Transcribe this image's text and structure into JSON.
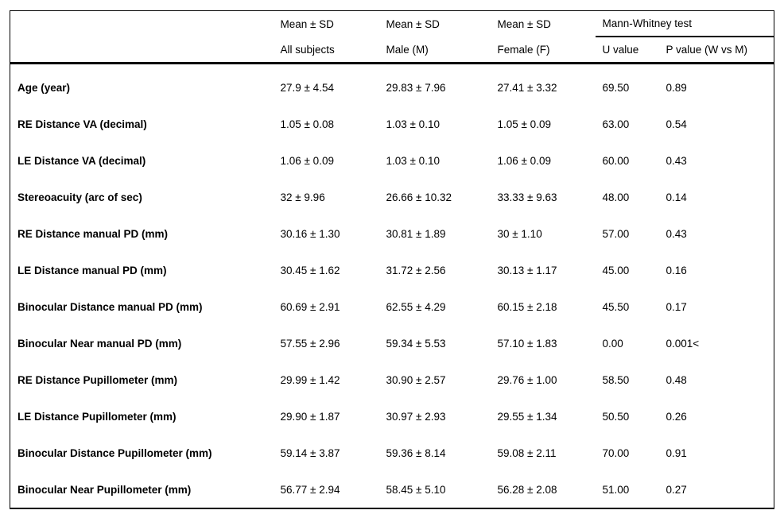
{
  "table": {
    "header": {
      "mean_sd": "Mean ± SD",
      "mann_whitney": "Mann-Whitney test",
      "sub": {
        "all": "All subjects",
        "male": "Male (M)",
        "female": "Female (F)",
        "u": "U value",
        "p": "P value (W vs M)"
      }
    },
    "rows": [
      {
        "label": "Age (year)",
        "all": "27.9 ± 4.54",
        "male": "29.83 ± 7.96",
        "female": "27.41 ± 3.32",
        "u": "69.50",
        "p": "0.89"
      },
      {
        "label": "RE Distance VA (decimal)",
        "all": "1.05 ± 0.08",
        "male": "1.03 ± 0.10",
        "female": "1.05 ± 0.09",
        "u": "63.00",
        "p": "0.54"
      },
      {
        "label": "LE Distance VA (decimal)",
        "all": "1.06 ± 0.09",
        "male": "1.03 ± 0.10",
        "female": "1.06 ± 0.09",
        "u": "60.00",
        "p": "0.43"
      },
      {
        "label": "Stereoacuity (arc of sec)",
        "all": "32 ± 9.96",
        "male": "26.66 ± 10.32",
        "female": "33.33 ± 9.63",
        "u": "48.00",
        "p": "0.14"
      },
      {
        "label": "RE Distance manual PD (mm)",
        "all": "30.16 ± 1.30",
        "male": "30.81 ± 1.89",
        "female": "30 ± 1.10",
        "u": "57.00",
        "p": "0.43"
      },
      {
        "label": "LE Distance manual PD (mm)",
        "all": "30.45 ± 1.62",
        "male": "31.72 ± 2.56",
        "female": "30.13 ± 1.17",
        "u": "45.00",
        "p": "0.16"
      },
      {
        "label": "Binocular Distance manual PD (mm)",
        "all": "60.69 ± 2.91",
        "male": "62.55 ± 4.29",
        "female": "60.15 ± 2.18",
        "u": "45.50",
        "p": "0.17"
      },
      {
        "label": "Binocular Near manual PD (mm)",
        "all": "57.55 ± 2.96",
        "male": "59.34 ± 5.53",
        "female": "57.10 ± 1.83",
        "u": "0.00",
        "p": "0.001<"
      },
      {
        "label": "RE Distance Pupillometer (mm)",
        "all": "29.99 ± 1.42",
        "male": "30.90 ± 2.57",
        "female": "29.76 ± 1.00",
        "u": "58.50",
        "p": "0.48"
      },
      {
        "label": "LE Distance Pupillometer (mm)",
        "all": "29.90 ± 1.87",
        "male": "30.97 ± 2.93",
        "female": "29.55 ± 1.34",
        "u": "50.50",
        "p": "0.26"
      },
      {
        "label": "Binocular Distance Pupillometer (mm)",
        "all": "59.14 ± 3.87",
        "male": "59.36 ± 8.14",
        "female": "59.08 ± 2.11",
        "u": "70.00",
        "p": "0.91"
      },
      {
        "label": "Binocular Near Pupillometer (mm)",
        "all": "56.77 ± 2.94",
        "male": "58.45 ± 5.10",
        "female": "56.28 ± 2.08",
        "u": "51.00",
        "p": "0.27"
      }
    ]
  }
}
